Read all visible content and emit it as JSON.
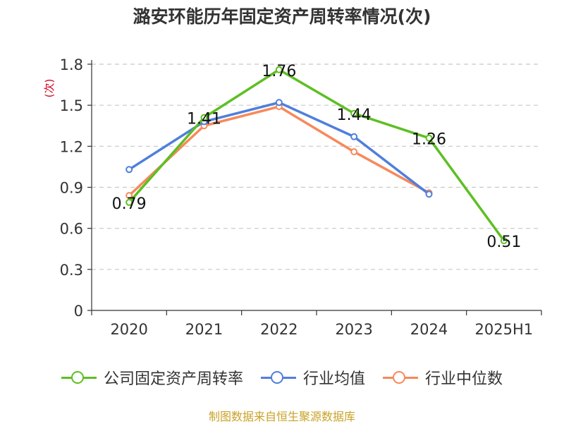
{
  "chart_data": {
    "type": "line",
    "title": "潞安环能历年固定资产周转率情况(次)",
    "ylabel": "(次)",
    "xlabel": "",
    "categories": [
      "2020",
      "2021",
      "2022",
      "2023",
      "2024",
      "2025H1"
    ],
    "yticks": [
      "0",
      "0.3",
      "0.6",
      "0.9",
      "1.2",
      "1.5",
      "1.8"
    ],
    "ylim": [
      0,
      1.8
    ],
    "grid": true,
    "legend_position": "bottom",
    "series": [
      {
        "name": "公司固定资产周转率",
        "color": "#5dbf23",
        "values": [
          0.79,
          1.41,
          1.76,
          1.44,
          1.26,
          0.51
        ],
        "labels": [
          "0.79",
          "1.41",
          "1.76",
          "1.44",
          "1.26",
          "0.51"
        ]
      },
      {
        "name": "行业均值",
        "color": "#4f7fdb",
        "values": [
          1.03,
          1.38,
          1.52,
          1.27,
          0.85,
          null
        ]
      },
      {
        "name": "行业中位数",
        "color": "#f7895a",
        "values": [
          0.84,
          1.35,
          1.49,
          1.16,
          0.86,
          null
        ]
      }
    ],
    "source": "制图数据来自恒生聚源数据库"
  }
}
